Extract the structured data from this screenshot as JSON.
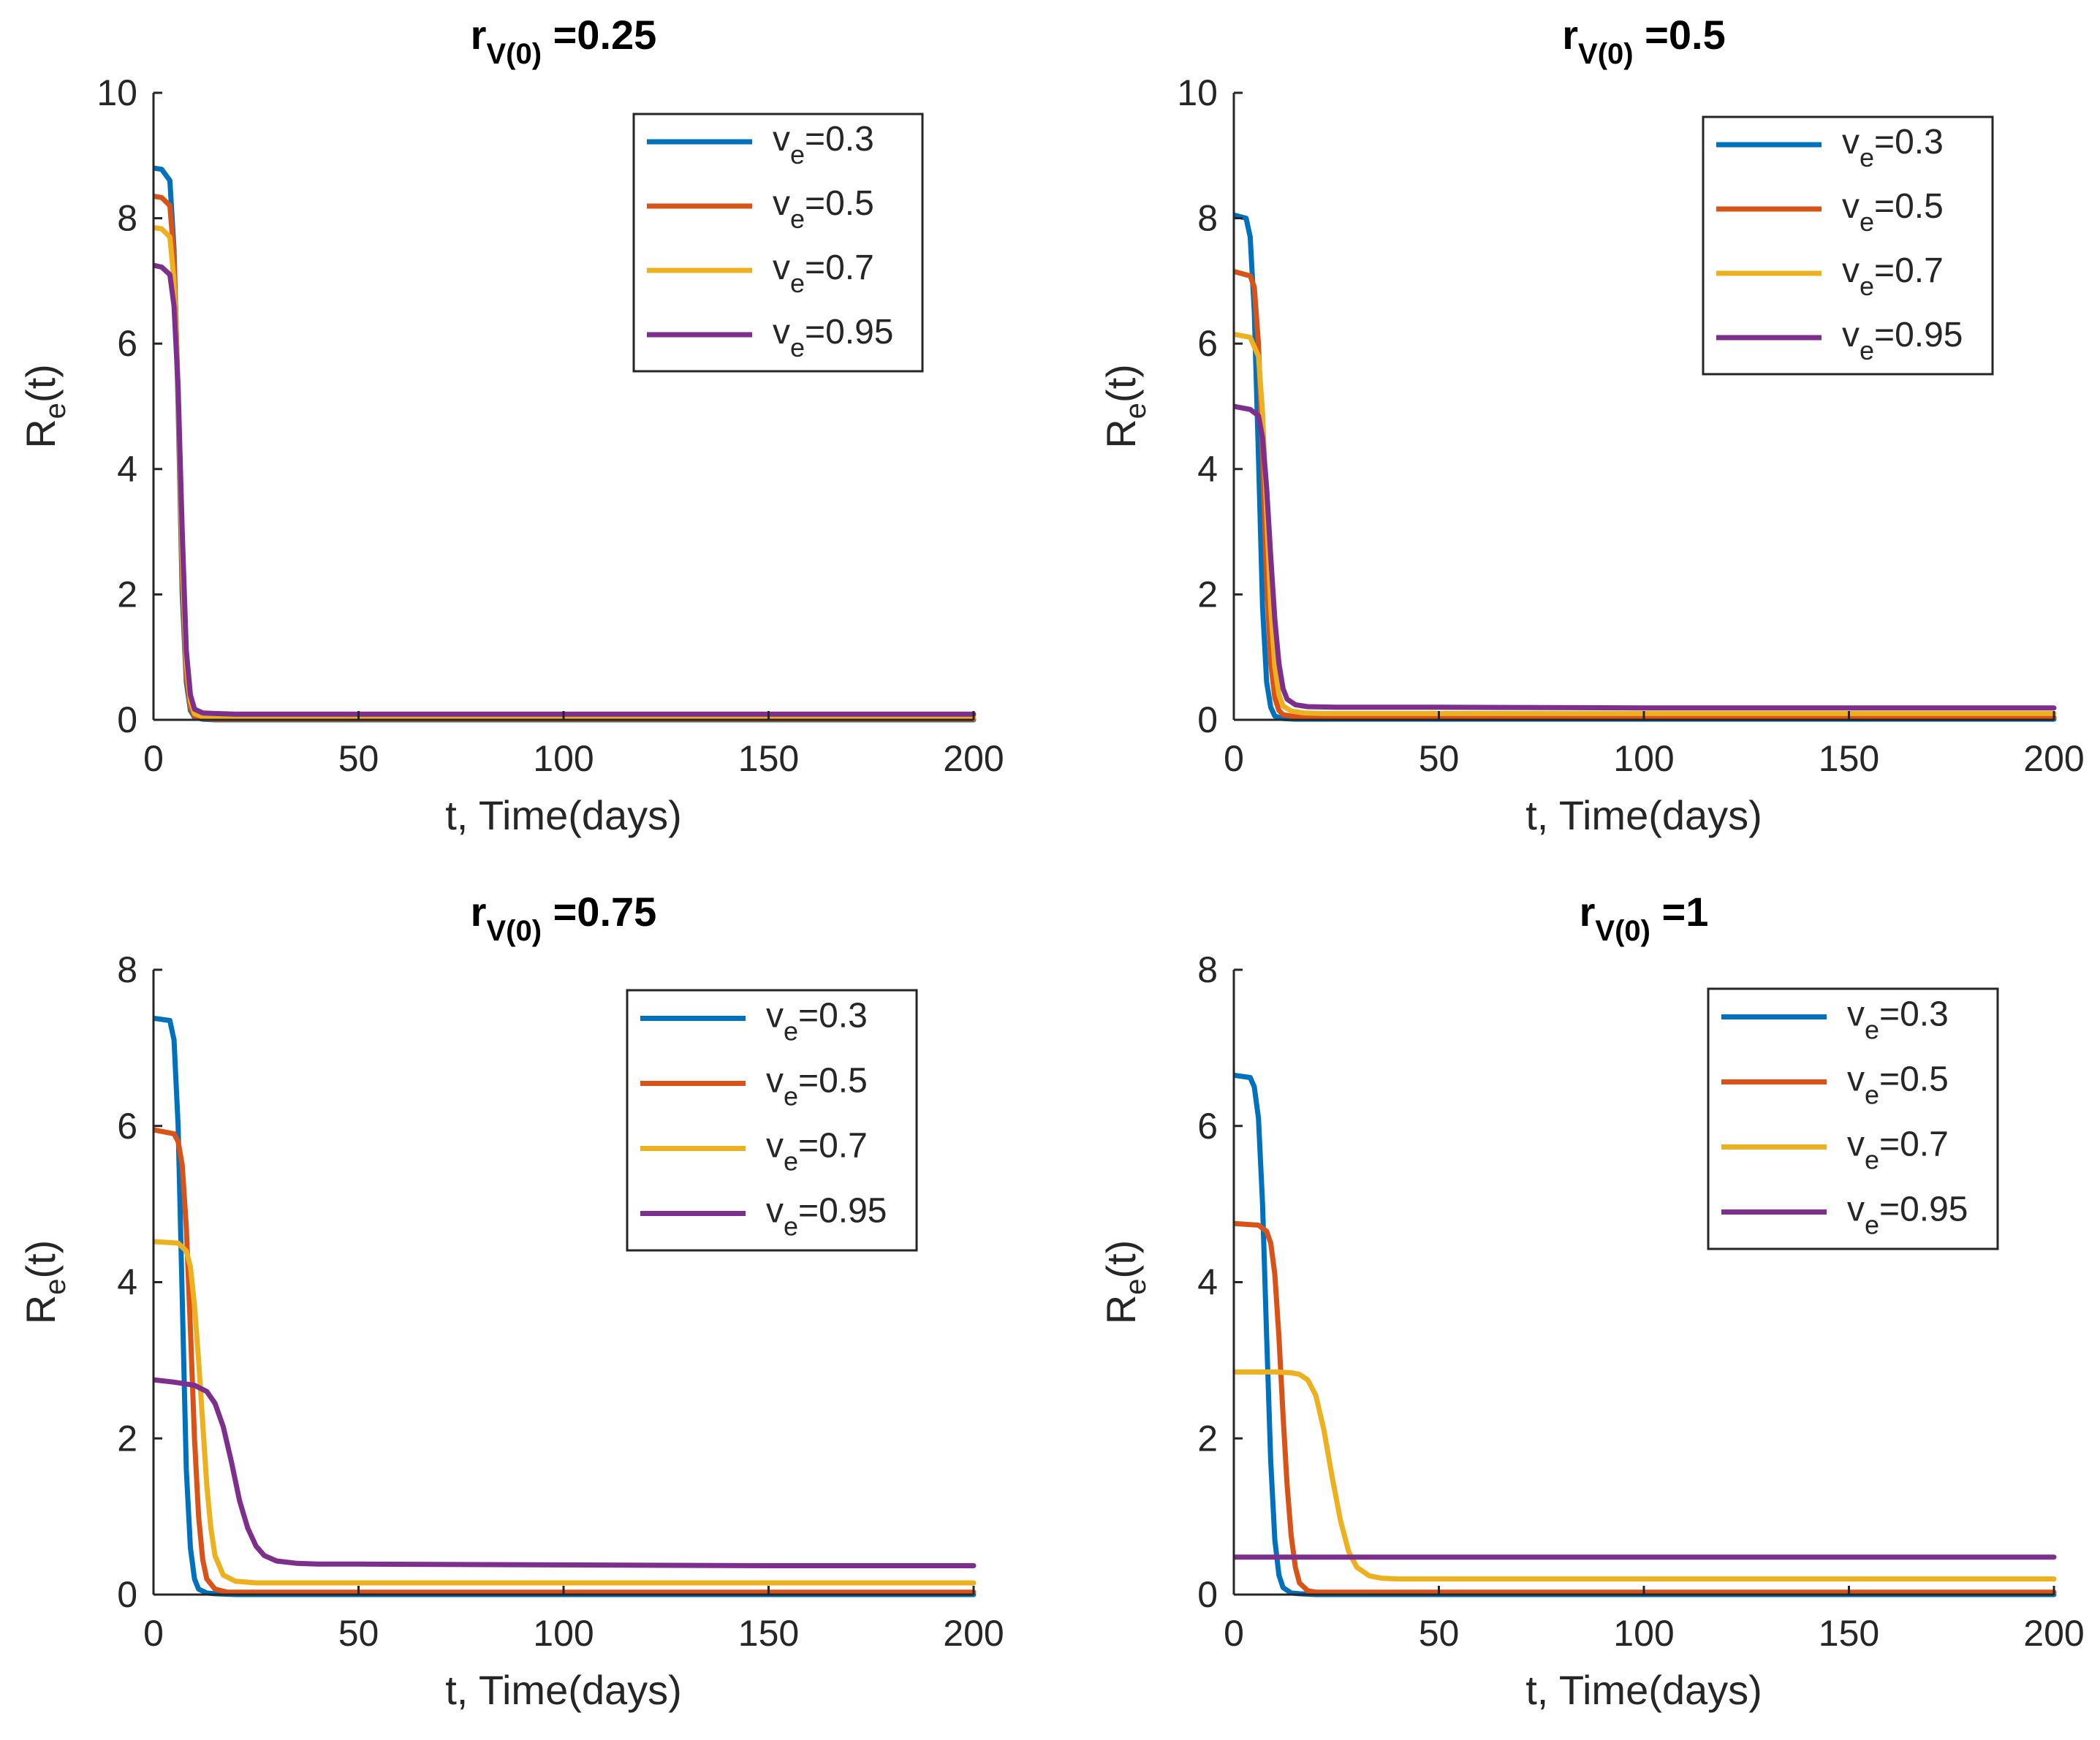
{
  "chart_data": [
    {
      "type": "line",
      "title_main": "r",
      "title_sub": "V(0)",
      "title_value": "=0.25",
      "xlabel": "t, Time(days)",
      "ylabel_main": "R",
      "ylabel_sub": "e",
      "ylabel_tail": "(t)",
      "xlim": [
        0,
        200
      ],
      "ylim": [
        0,
        10
      ],
      "xticks": [
        0,
        50,
        100,
        150,
        200
      ],
      "yticks": [
        0,
        2,
        4,
        6,
        8,
        10
      ],
      "legend": "top-right",
      "grid": false,
      "series": [
        {
          "name": "v_e=0.3",
          "label_main": "v",
          "label_sub": "e",
          "label_tail": "=0.3",
          "color": "#0072BD",
          "x": [
            0,
            2,
            4,
            5,
            6,
            7,
            8,
            9,
            10,
            12,
            15,
            20,
            50,
            100,
            150,
            200
          ],
          "y": [
            8.8,
            8.78,
            8.6,
            7.5,
            5.0,
            2.0,
            0.6,
            0.15,
            0.04,
            0.01,
            0.0,
            0.0,
            0.0,
            0.0,
            0.0,
            0.0
          ]
        },
        {
          "name": "v_e=0.5",
          "label_main": "v",
          "label_sub": "e",
          "label_tail": "=0.5",
          "color": "#D95319",
          "x": [
            0,
            2,
            4,
            5,
            6,
            7,
            8,
            9,
            10,
            12,
            15,
            20,
            50,
            100,
            150,
            200
          ],
          "y": [
            8.35,
            8.33,
            8.2,
            7.4,
            5.2,
            2.3,
            0.7,
            0.2,
            0.06,
            0.02,
            0.01,
            0.01,
            0.01,
            0.01,
            0.01,
            0.01
          ]
        },
        {
          "name": "v_e=0.7",
          "label_main": "v",
          "label_sub": "e",
          "label_tail": "=0.7",
          "color": "#EDB120",
          "x": [
            0,
            2,
            4,
            5,
            6,
            7,
            8,
            9,
            10,
            12,
            15,
            20,
            50,
            100,
            150,
            200
          ],
          "y": [
            7.85,
            7.83,
            7.7,
            7.0,
            5.2,
            2.6,
            0.9,
            0.3,
            0.1,
            0.05,
            0.04,
            0.04,
            0.04,
            0.04,
            0.04,
            0.04
          ]
        },
        {
          "name": "v_e=0.95",
          "label_main": "v",
          "label_sub": "e",
          "label_tail": "=0.95",
          "color": "#7E2F8E",
          "x": [
            0,
            2,
            4,
            5,
            6,
            7,
            8,
            9,
            10,
            12,
            15,
            20,
            50,
            100,
            150,
            200
          ],
          "y": [
            7.25,
            7.22,
            7.1,
            6.6,
            5.3,
            3.0,
            1.1,
            0.4,
            0.17,
            0.11,
            0.1,
            0.09,
            0.09,
            0.09,
            0.09,
            0.09
          ]
        }
      ]
    },
    {
      "type": "line",
      "title_main": "r",
      "title_sub": "V(0)",
      "title_value": "=0.5",
      "xlabel": "t, Time(days)",
      "ylabel_main": "R",
      "ylabel_sub": "e",
      "ylabel_tail": "(t)",
      "xlim": [
        0,
        200
      ],
      "ylim": [
        0,
        10
      ],
      "xticks": [
        0,
        50,
        100,
        150,
        200
      ],
      "yticks": [
        0,
        2,
        4,
        6,
        8,
        10
      ],
      "legend": "top-right",
      "grid": false,
      "series": [
        {
          "name": "v_e=0.3",
          "label_main": "v",
          "label_sub": "e",
          "label_tail": "=0.3",
          "color": "#0072BD",
          "x": [
            0,
            3,
            4,
            5,
            6,
            7,
            8,
            9,
            10,
            12,
            15,
            20,
            50,
            100,
            150,
            200
          ],
          "y": [
            8.05,
            8.0,
            7.7,
            6.5,
            4.2,
            1.8,
            0.6,
            0.2,
            0.06,
            0.02,
            0.01,
            0.01,
            0.01,
            0.01,
            0.01,
            0.01
          ]
        },
        {
          "name": "v_e=0.5",
          "label_main": "v",
          "label_sub": "e",
          "label_tail": "=0.5",
          "color": "#D95319",
          "x": [
            0,
            4,
            5,
            6,
            7,
            8,
            9,
            10,
            11,
            12,
            15,
            20,
            50,
            100,
            150,
            200
          ],
          "y": [
            7.15,
            7.08,
            6.9,
            6.0,
            4.2,
            2.2,
            0.9,
            0.35,
            0.15,
            0.08,
            0.05,
            0.04,
            0.04,
            0.04,
            0.04,
            0.04
          ]
        },
        {
          "name": "v_e=0.7",
          "label_main": "v",
          "label_sub": "e",
          "label_tail": "=0.7",
          "color": "#EDB120",
          "x": [
            0,
            4,
            6,
            7,
            8,
            9,
            10,
            11,
            12,
            14,
            17,
            22,
            50,
            100,
            150,
            200
          ],
          "y": [
            6.15,
            6.1,
            5.8,
            4.9,
            3.3,
            1.8,
            0.85,
            0.4,
            0.22,
            0.14,
            0.11,
            0.1,
            0.1,
            0.1,
            0.1,
            0.1
          ]
        },
        {
          "name": "v_e=0.95",
          "label_main": "v",
          "label_sub": "e",
          "label_tail": "=0.95",
          "color": "#7E2F8E",
          "x": [
            0,
            4,
            6,
            7,
            8,
            9,
            10,
            11,
            12,
            13,
            15,
            18,
            25,
            50,
            100,
            150,
            200
          ],
          "y": [
            5.0,
            4.95,
            4.85,
            4.5,
            3.7,
            2.6,
            1.6,
            0.9,
            0.5,
            0.33,
            0.24,
            0.21,
            0.2,
            0.2,
            0.19,
            0.19,
            0.19
          ]
        }
      ]
    },
    {
      "type": "line",
      "title_main": "r",
      "title_sub": "V(0)",
      "title_value": "=0.75",
      "xlabel": "t, Time(days)",
      "ylabel_main": "R",
      "ylabel_sub": "e",
      "ylabel_tail": "(t)",
      "xlim": [
        0,
        200
      ],
      "ylim": [
        0,
        8
      ],
      "xticks": [
        0,
        50,
        100,
        150,
        200
      ],
      "yticks": [
        0,
        2,
        4,
        6,
        8
      ],
      "legend": "top-right",
      "grid": false,
      "series": [
        {
          "name": "v_e=0.3",
          "label_main": "v",
          "label_sub": "e",
          "label_tail": "=0.3",
          "color": "#0072BD",
          "x": [
            0,
            4,
            5,
            6,
            7,
            8,
            9,
            10,
            11,
            13,
            15,
            20,
            50,
            100,
            150,
            200
          ],
          "y": [
            7.38,
            7.35,
            7.1,
            6.0,
            3.8,
            1.6,
            0.6,
            0.2,
            0.07,
            0.02,
            0.01,
            0.0,
            0.0,
            0.0,
            0.0,
            0.0
          ]
        },
        {
          "name": "v_e=0.5",
          "label_main": "v",
          "label_sub": "e",
          "label_tail": "=0.5",
          "color": "#D95319",
          "x": [
            0,
            5,
            6,
            7,
            8,
            9,
            10,
            11,
            12,
            13,
            15,
            18,
            25,
            50,
            100,
            150,
            200
          ],
          "y": [
            5.95,
            5.9,
            5.8,
            5.5,
            4.7,
            3.4,
            2.0,
            1.0,
            0.45,
            0.2,
            0.07,
            0.03,
            0.03,
            0.03,
            0.03,
            0.03,
            0.03
          ]
        },
        {
          "name": "v_e=0.7",
          "label_main": "v",
          "label_sub": "e",
          "label_tail": "=0.7",
          "color": "#EDB120",
          "x": [
            0,
            6,
            8,
            9,
            10,
            11,
            12,
            13,
            14,
            15,
            17,
            20,
            25,
            50,
            100,
            150,
            200
          ],
          "y": [
            4.52,
            4.5,
            4.4,
            4.2,
            3.7,
            3.0,
            2.2,
            1.4,
            0.85,
            0.5,
            0.25,
            0.17,
            0.15,
            0.15,
            0.15,
            0.15,
            0.15
          ]
        },
        {
          "name": "v_e=0.95",
          "label_main": "v",
          "label_sub": "e",
          "label_tail": "=0.95",
          "color": "#7E2F8E",
          "x": [
            0,
            5,
            10,
            13,
            15,
            17,
            19,
            21,
            23,
            25,
            27,
            30,
            35,
            40,
            50,
            100,
            150,
            200
          ],
          "y": [
            2.75,
            2.72,
            2.68,
            2.6,
            2.45,
            2.15,
            1.7,
            1.2,
            0.85,
            0.62,
            0.5,
            0.43,
            0.4,
            0.39,
            0.39,
            0.38,
            0.37,
            0.37
          ]
        }
      ]
    },
    {
      "type": "line",
      "title_main": "r",
      "title_sub": "V(0)",
      "title_value": "=1",
      "xlabel": "t, Time(days)",
      "ylabel_main": "R",
      "ylabel_sub": "e",
      "ylabel_tail": "(t)",
      "xlim": [
        0,
        200
      ],
      "ylim": [
        0,
        8
      ],
      "xticks": [
        0,
        50,
        100,
        150,
        200
      ],
      "yticks": [
        0,
        2,
        4,
        6,
        8
      ],
      "legend": "top-right",
      "grid": false,
      "series": [
        {
          "name": "v_e=0.3",
          "label_main": "v",
          "label_sub": "e",
          "label_tail": "=0.3",
          "color": "#0072BD",
          "x": [
            0,
            4,
            5,
            6,
            7,
            8,
            9,
            10,
            11,
            12,
            14,
            16,
            20,
            50,
            100,
            150,
            200
          ],
          "y": [
            6.65,
            6.62,
            6.5,
            6.1,
            5.0,
            3.3,
            1.7,
            0.7,
            0.25,
            0.09,
            0.02,
            0.01,
            0.0,
            0.0,
            0.0,
            0.0,
            0.0
          ]
        },
        {
          "name": "v_e=0.5",
          "label_main": "v",
          "label_sub": "e",
          "label_tail": "=0.5",
          "color": "#D95319",
          "x": [
            0,
            6,
            8,
            9,
            10,
            11,
            12,
            13,
            14,
            15,
            16,
            18,
            20,
            25,
            50,
            100,
            150,
            200
          ],
          "y": [
            4.75,
            4.73,
            4.65,
            4.5,
            4.1,
            3.3,
            2.3,
            1.4,
            0.75,
            0.35,
            0.15,
            0.05,
            0.03,
            0.03,
            0.03,
            0.03,
            0.03,
            0.03
          ]
        },
        {
          "name": "v_e=0.7",
          "label_main": "v",
          "label_sub": "e",
          "label_tail": "=0.7",
          "color": "#EDB120",
          "x": [
            0,
            10,
            14,
            16,
            18,
            20,
            22,
            24,
            26,
            28,
            30,
            33,
            36,
            40,
            50,
            100,
            150,
            200
          ],
          "y": [
            2.85,
            2.85,
            2.84,
            2.82,
            2.75,
            2.55,
            2.1,
            1.5,
            0.95,
            0.55,
            0.35,
            0.24,
            0.21,
            0.2,
            0.2,
            0.2,
            0.2,
            0.2
          ]
        },
        {
          "name": "v_e=0.95",
          "label_main": "v",
          "label_sub": "e",
          "label_tail": "=0.95",
          "color": "#7E2F8E",
          "x": [
            0,
            50,
            100,
            150,
            200
          ],
          "y": [
            0.48,
            0.48,
            0.48,
            0.48,
            0.48
          ]
        }
      ]
    }
  ]
}
